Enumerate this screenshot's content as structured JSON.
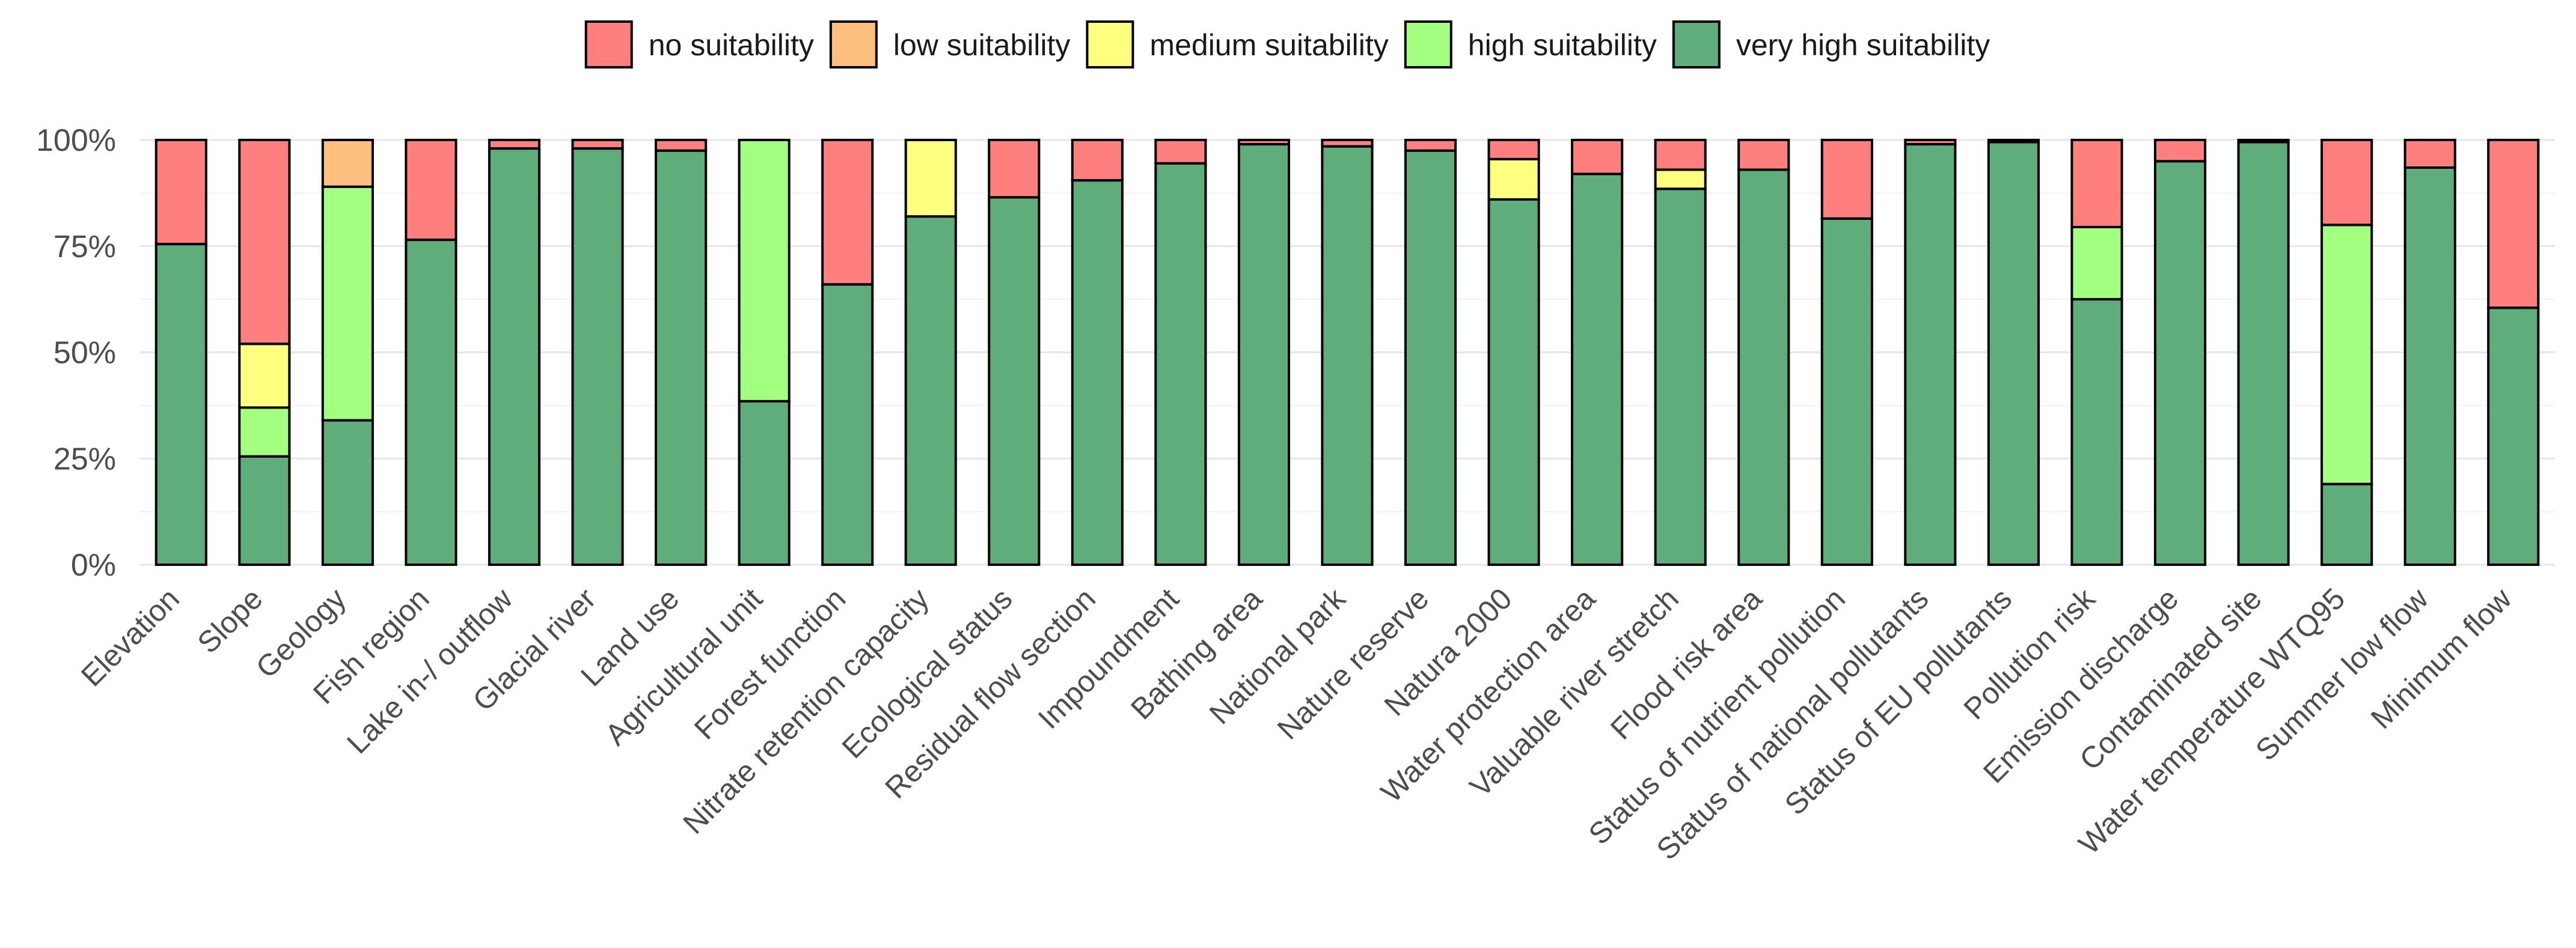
{
  "chart_data": {
    "type": "bar",
    "stacked": true,
    "title": "",
    "xlabel": "",
    "ylabel": "",
    "ylim": [
      0,
      100
    ],
    "yticks": [
      "0%",
      "25%",
      "50%",
      "75%",
      "100%"
    ],
    "ytick_values": [
      0,
      25,
      50,
      75,
      100
    ],
    "legend_position": "top",
    "colors": {
      "no suitability": "#FF7F7F",
      "low suitability": "#FFC07F",
      "medium suitability": "#FFFF7F",
      "high suitability": "#A2FF7F",
      "very high suitability": "#5FAD7A"
    },
    "legend": [
      "no suitability",
      "low suitability",
      "medium suitability",
      "high suitability",
      "very high suitability"
    ],
    "categories": [
      "Elevation",
      "Slope",
      "Geology",
      "Fish region",
      "Lake in-/ outflow",
      "Glacial river",
      "Land use",
      "Agricultural unit",
      "Forest function",
      "Nitrate retention capacity",
      "Ecological status",
      "Residual flow section",
      "Impoundment",
      "Bathing area",
      "National park",
      "Nature reserve",
      "Natura 2000",
      "Water protection area",
      "Valuable river stretch",
      "Flood risk area",
      "Status of nutrient pollution",
      "Status of national pollutants",
      "Status of EU pollutants",
      "Pollution risk",
      "Emission discharge",
      "Contaminated site",
      "Water temperature WTQ95",
      "Summer low flow",
      "Minimum flow"
    ],
    "series": [
      {
        "name": "very high suitability",
        "values": [
          75.5,
          25.5,
          34,
          76.5,
          98,
          98,
          97.5,
          38.5,
          66,
          82,
          86.5,
          90.5,
          94.5,
          99,
          98.5,
          97.5,
          86,
          92,
          88.5,
          93,
          81.5,
          99,
          99.5,
          62.5,
          95,
          99.5,
          19,
          93.5,
          60.5
        ]
      },
      {
        "name": "high suitability",
        "values": [
          0,
          11.5,
          55,
          0,
          0,
          0,
          0,
          61.5,
          0,
          0,
          0,
          0,
          0,
          0,
          0,
          0,
          0,
          0,
          0,
          0,
          0,
          0,
          0,
          17,
          0,
          0,
          61,
          0,
          0
        ]
      },
      {
        "name": "medium suitability",
        "values": [
          0,
          15,
          0,
          0,
          0,
          0,
          0,
          0,
          0,
          18,
          0,
          0,
          0,
          0,
          0,
          0,
          9.5,
          0,
          4.5,
          0,
          0,
          0,
          0,
          0,
          0,
          0,
          0,
          0,
          0
        ]
      },
      {
        "name": "low suitability",
        "values": [
          0,
          0,
          11,
          0,
          0,
          0,
          0,
          0,
          0,
          0,
          0,
          0,
          0,
          0,
          0,
          0,
          0,
          0,
          0,
          0,
          0,
          0,
          0,
          0,
          0,
          0,
          0,
          0,
          0
        ]
      },
      {
        "name": "no suitability",
        "values": [
          24.5,
          48,
          0,
          23.5,
          2,
          2,
          2.5,
          0,
          34,
          0,
          13.5,
          9.5,
          5.5,
          1,
          1.5,
          2.5,
          4.5,
          8,
          7,
          7,
          18.5,
          1,
          0.5,
          20.5,
          5,
          0.5,
          20,
          6.5,
          39.5
        ]
      }
    ]
  }
}
